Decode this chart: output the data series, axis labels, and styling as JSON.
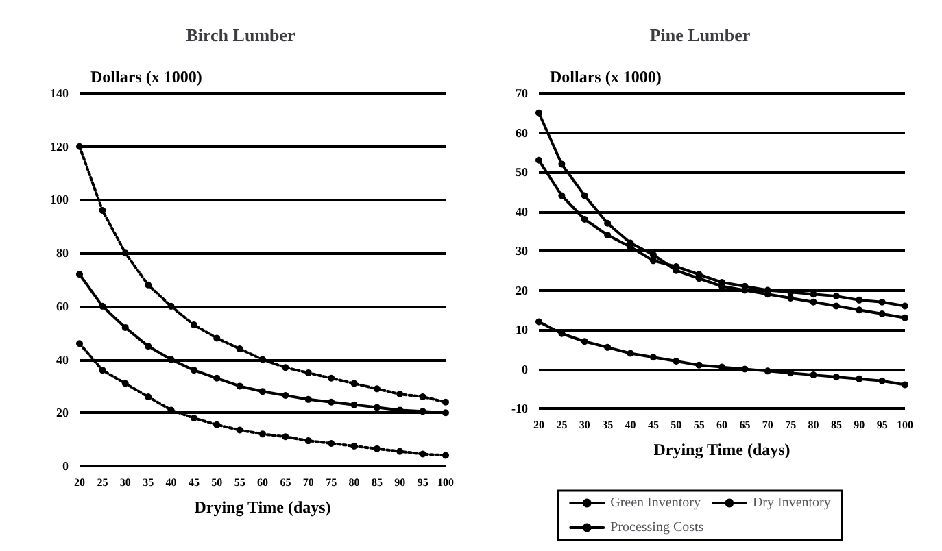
{
  "chart_data": [
    {
      "type": "line",
      "title": "Birch Lumber",
      "ylabel": "Dollars (x 1000)",
      "xlabel": "Drying Time (days)",
      "x": [
        20,
        25,
        30,
        35,
        40,
        45,
        50,
        55,
        60,
        65,
        70,
        75,
        80,
        85,
        90,
        95,
        100
      ],
      "xlim": [
        20,
        100
      ],
      "xticks": [
        20,
        25,
        30,
        35,
        40,
        45,
        50,
        55,
        60,
        65,
        70,
        75,
        80,
        85,
        90,
        95,
        100
      ],
      "ylim": [
        0,
        140
      ],
      "yticks": [
        0,
        20,
        40,
        60,
        80,
        100,
        120,
        140
      ],
      "grid": "y",
      "legend": false,
      "marker": "circle",
      "series": [
        {
          "color": "#000000",
          "line_style": "dotted",
          "values": [
            120,
            96,
            80,
            68,
            60,
            53,
            48,
            44,
            40,
            37,
            35,
            33,
            31,
            29,
            27,
            26,
            24
          ]
        },
        {
          "color": "#000000",
          "line_style": "solid",
          "values": [
            72,
            60,
            52,
            45,
            40,
            36,
            33,
            30,
            28,
            26.5,
            25,
            24,
            23,
            22,
            21,
            20.5,
            20
          ]
        },
        {
          "color": "#000000",
          "line_style": "dotted",
          "values": [
            46,
            36,
            31,
            26,
            21,
            18,
            15.5,
            13.5,
            12,
            11,
            9.5,
            8.5,
            7.5,
            6.5,
            5.5,
            4.5,
            4
          ]
        }
      ]
    },
    {
      "type": "line",
      "title": "Pine Lumber",
      "ylabel": "Dollars (x 1000)",
      "xlabel": "Drying Time (days)",
      "x": [
        20,
        25,
        30,
        35,
        40,
        45,
        50,
        55,
        60,
        65,
        70,
        75,
        80,
        85,
        90,
        95,
        100
      ],
      "xlim": [
        20,
        100
      ],
      "xticks": [
        20,
        25,
        30,
        35,
        40,
        45,
        50,
        55,
        60,
        65,
        70,
        75,
        80,
        85,
        90,
        95,
        100
      ],
      "ylim": [
        -10,
        70
      ],
      "yticks": [
        -10,
        0,
        10,
        20,
        30,
        40,
        50,
        60,
        70
      ],
      "grid": "y",
      "legend": "bottom",
      "marker": "circle",
      "line_style": "solid",
      "series": [
        {
          "name": "Green Inventory",
          "color": "#000000",
          "values": [
            65,
            52,
            44,
            37,
            32,
            29,
            25,
            23,
            21,
            20,
            19,
            18,
            17,
            16,
            15,
            14,
            13
          ]
        },
        {
          "name": "Dry Inventory",
          "color": "#000000",
          "values": [
            53,
            44,
            38,
            34,
            31,
            27.5,
            26,
            24,
            22,
            21,
            20,
            19.5,
            19,
            18.5,
            17.5,
            17,
            16
          ]
        },
        {
          "name": "Processing Costs",
          "color": "#000000",
          "values": [
            12,
            9,
            7,
            5.5,
            4,
            3,
            2,
            1,
            0.5,
            0,
            -0.5,
            -1,
            -1.5,
            -2,
            -2.5,
            -3,
            -4
          ]
        }
      ]
    }
  ]
}
